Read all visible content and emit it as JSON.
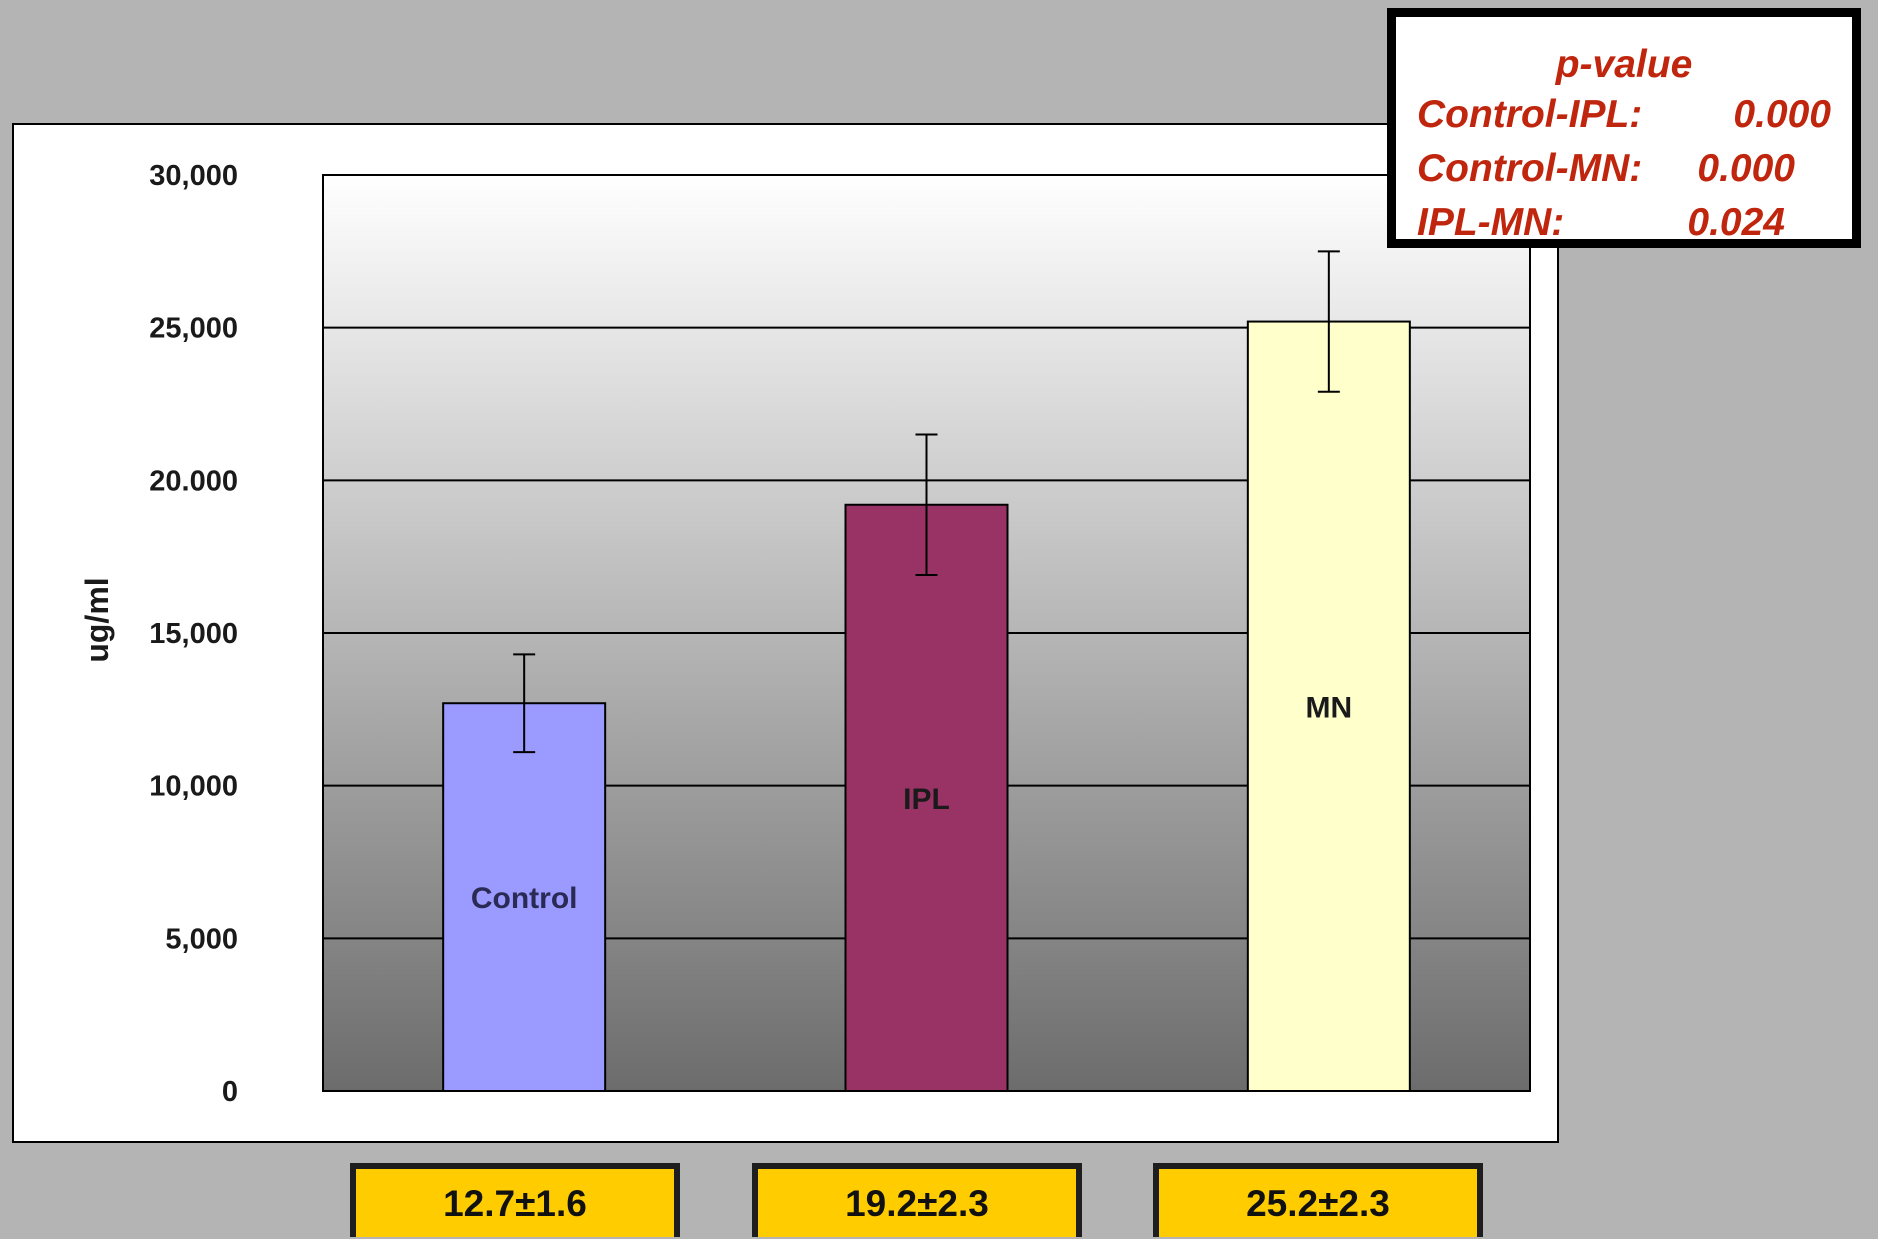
{
  "chart_data": {
    "type": "bar",
    "ylabel": "ug/ml",
    "ylim": [
      0,
      30000
    ],
    "y_tick_labels": [
      "0",
      "5,000",
      "10,000",
      "15,000",
      "20.000",
      "25,000",
      "30,000"
    ],
    "y_tick_values": [
      0,
      5000,
      10000,
      15000,
      20000,
      25000,
      30000
    ],
    "grid": true,
    "categories": [
      "Control",
      "IPL",
      "MN"
    ],
    "values": [
      12700,
      19200,
      25200
    ],
    "errors": [
      1600,
      2300,
      2300
    ],
    "bar_colors": [
      "#9a9aff",
      "#993366",
      "#ffffcc"
    ],
    "bar_label_colors": [
      "#2a2a55",
      "#1a1a1a",
      "#1a1a1a"
    ],
    "value_labels": [
      "12.7±1.6",
      "19.2±2.3",
      "25.2±2.3"
    ]
  },
  "pvalue_box": {
    "title": "p-value",
    "rows": [
      {
        "label": "Control-IPL:",
        "value": "0.000"
      },
      {
        "label": "Control-MN:",
        "value": "0.000"
      },
      {
        "label": "IPL-MN:",
        "value": "0.024"
      }
    ]
  },
  "colors": {
    "page_background": "#b4b4b4",
    "chart_panel": "#ffffff",
    "value_box": "#ffcc00",
    "pvalue_text": "#c0260e"
  }
}
